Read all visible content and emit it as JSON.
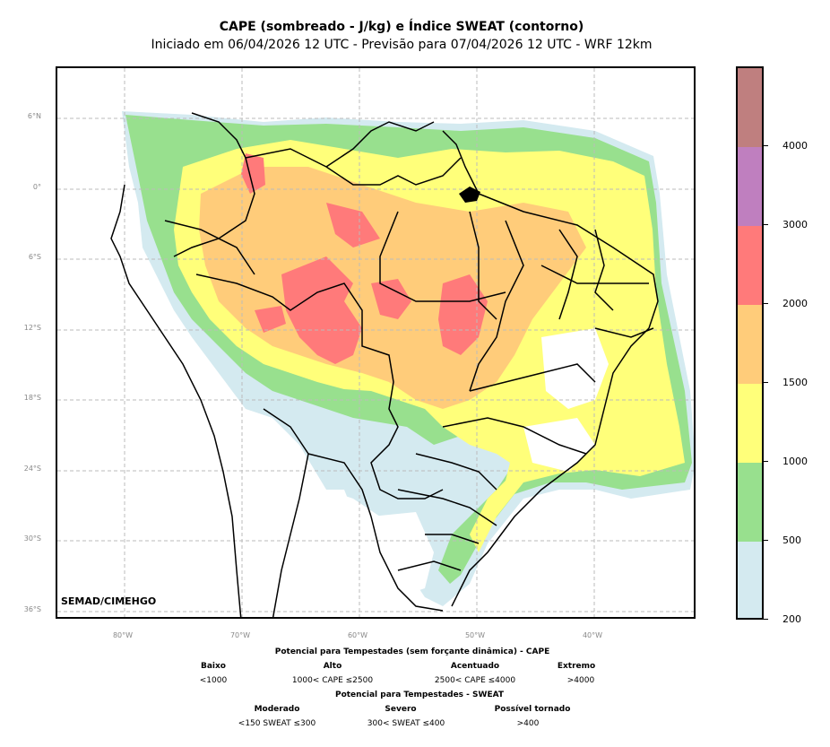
{
  "title": "CAPE (sombreado - J/kg) e Índice SWEAT (contorno)",
  "subtitle": "Iniciado em 06/04/2026 12 UTC - Previsão para 07/04/2026 12 UTC - WRF 12km",
  "credit": "SEMAD/CIMEHGO",
  "lat_labels": [
    "6°N",
    "0°",
    "6°S",
    "12°S",
    "18°S",
    "24°S",
    "30°S",
    "36°S"
  ],
  "lon_labels": [
    "80°W",
    "70°W",
    "60°W",
    "50°W",
    "40°W"
  ],
  "colorbar": {
    "ticks": [
      "200",
      "500",
      "1000",
      "1500",
      "2000",
      "3000",
      "4000"
    ],
    "colors": [
      "#d4eaf0",
      "#98e08e",
      "#ffff7a",
      "#ffcc7a",
      "#ff7a7a",
      "#bf7fbf",
      "#bf7f7f"
    ]
  },
  "legend": {
    "cape_header": "Potencial para Tempestades (sem forçante dinâmica) - CAPE",
    "cape_cats": [
      {
        "name": "Baixo",
        "range": "<1000"
      },
      {
        "name": "Alto",
        "range": "1000< CAPE ≤2500"
      },
      {
        "name": "Acentuado",
        "range": "2500< CAPE ≤4000"
      },
      {
        "name": "Extremo",
        "range": ">4000"
      }
    ],
    "sweat_header": "Potencial para Tempestades - SWEAT",
    "sweat_cats": [
      {
        "name": "Moderado",
        "range": "<150 SWEAT ≤300"
      },
      {
        "name": "Severo",
        "range": "300< SWEAT ≤400"
      },
      {
        "name": "Possível tornado",
        "range": ">400"
      }
    ]
  }
}
